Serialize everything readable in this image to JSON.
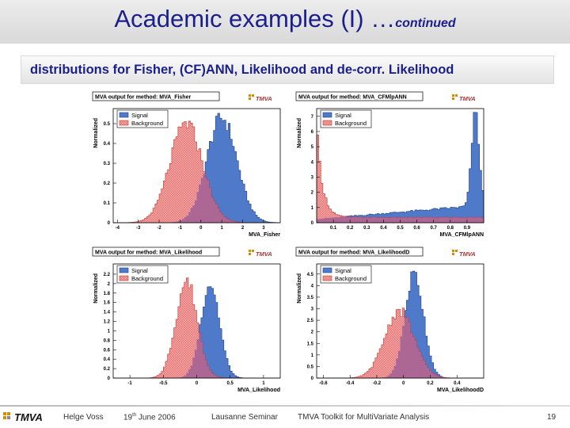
{
  "title": {
    "main": "Academic examples (I) …",
    "suffix": "continued"
  },
  "subtitle": "distributions for Fisher, (CF)ANN, Likelihood and de-corr. Likelihood",
  "colors": {
    "title": "#1a1f8c",
    "signal": "#4f7ac9",
    "background": "#f2a3a3",
    "overlap": "#9b5c95",
    "logo_accent": "#d68b00"
  },
  "footer": {
    "logo": "TMVA",
    "author": "Helge Voss",
    "date_day": "19",
    "date_sup": "th",
    "date_rest": " June 2006",
    "event": "Lausanne Seminar",
    "project": "TMVA Toolkit for MultiVariate Analysis",
    "page": "19"
  },
  "chart_data": [
    {
      "type": "area",
      "title": "MVA output for method: MVA_Fisher",
      "xlabel": "MVA_Fisher",
      "ylabel": "Normalized",
      "xlim": [
        -4.2,
        3.8
      ],
      "ylim": [
        0,
        0.56
      ],
      "xticks": [
        -4,
        -3,
        -2,
        -1,
        0,
        1,
        2,
        3
      ],
      "yticks": [
        0,
        0.1,
        0.2,
        0.3,
        0.4,
        0.5
      ],
      "legend": {
        "placement": "top-left",
        "entries": [
          "Signal",
          "Background"
        ]
      },
      "logo": "TMVA",
      "series": [
        {
          "name": "Signal",
          "shape": "gauss",
          "mu": 1.0,
          "sigma": 0.72,
          "peak": 0.53
        },
        {
          "name": "Background",
          "shape": "gauss",
          "mu": -0.7,
          "sigma": 0.78,
          "peak": 0.5
        }
      ]
    },
    {
      "type": "area",
      "title": "MVA output for method: MVA_CFMlpANN",
      "xlabel": "MVA_CFMlpANN",
      "ylabel": "Normalized",
      "xlim": [
        0,
        1
      ],
      "ylim": [
        0,
        7.3
      ],
      "xticks": [
        0.1,
        0.2,
        0.3,
        0.4,
        0.5,
        0.6,
        0.7,
        0.8,
        0.9
      ],
      "yticks": [
        0,
        1,
        2,
        3,
        4,
        5,
        6,
        7
      ],
      "legend": {
        "placement": "top-left",
        "entries": [
          "Signal",
          "Background"
        ]
      },
      "logo": "TMVA",
      "series": [
        {
          "name": "Signal",
          "shape": "ann_sig"
        },
        {
          "name": "Background",
          "shape": "ann_bkg"
        }
      ]
    },
    {
      "type": "area",
      "title": "MVA output for method: MVA_Likelihood",
      "xlabel": "MVA_Likelihood",
      "ylabel": "Normalized",
      "xlim": [
        -1.25,
        1.25
      ],
      "ylim": [
        0,
        2.35
      ],
      "xticks": [
        -1,
        -0.5,
        0,
        0.5,
        1
      ],
      "yticks": [
        0,
        0.2,
        0.4,
        0.6,
        0.8,
        1,
        1.2,
        1.4,
        1.6,
        1.8,
        2,
        2.2
      ],
      "legend": {
        "placement": "top-left",
        "entries": [
          "Signal",
          "Background"
        ]
      },
      "logo": "TMVA",
      "series": [
        {
          "name": "Signal",
          "shape": "gauss",
          "mu": 0.2,
          "sigma": 0.14,
          "peak": 2.0
        },
        {
          "name": "Background",
          "shape": "gauss",
          "mu": -0.15,
          "sigma": 0.16,
          "peak": 2.05
        }
      ]
    },
    {
      "type": "area",
      "title": "MVA output for method: MVA_LikelihoodD",
      "xlabel": "MVA_LikelihoodD",
      "ylabel": "Normalized",
      "xlim": [
        -0.65,
        0.6
      ],
      "ylim": [
        0,
        4.8
      ],
      "xticks": [
        -0.6,
        -0.4,
        -0.2,
        0,
        0.2,
        0.4
      ],
      "yticks": [
        0,
        0.5,
        1,
        1.5,
        2,
        2.5,
        3,
        3.5,
        4,
        4.5
      ],
      "legend": {
        "placement": "top-left",
        "entries": [
          "Signal",
          "Background"
        ]
      },
      "logo": "TMVA",
      "series": [
        {
          "name": "Signal",
          "shape": "gauss",
          "mu": 0.08,
          "sigma": 0.07,
          "peak": 4.5
        },
        {
          "name": "Background",
          "shape": "gauss",
          "mu": -0.03,
          "sigma": 0.11,
          "peak": 2.9
        }
      ]
    }
  ]
}
